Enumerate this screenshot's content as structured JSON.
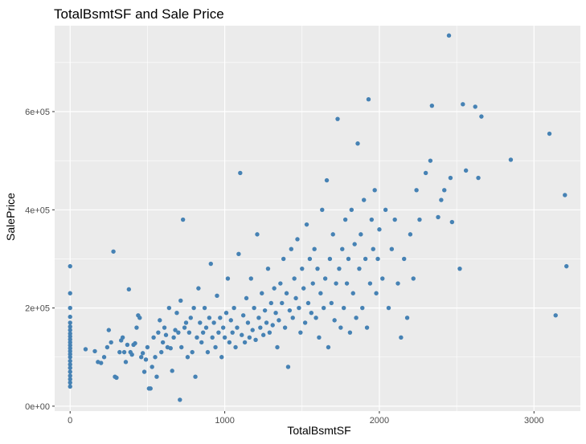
{
  "chart_data": {
    "type": "scatter",
    "title": "TotalBsmtSF and Sale Price",
    "xlabel": "TotalBsmtSF",
    "ylabel": "SalePrice",
    "xlim": [
      -100,
      3300
    ],
    "ylim": [
      -10000,
      775000
    ],
    "x_ticks": [
      {
        "value": 0,
        "label": "0"
      },
      {
        "value": 1000,
        "label": "1000"
      },
      {
        "value": 2000,
        "label": "2000"
      },
      {
        "value": 3000,
        "label": "3000"
      }
    ],
    "y_ticks": [
      {
        "value": 0,
        "label": "0e+00"
      },
      {
        "value": 200000,
        "label": "2e+05"
      },
      {
        "value": 400000,
        "label": "4e+05"
      },
      {
        "value": 600000,
        "label": "6e+05"
      }
    ],
    "grid": true,
    "point_color": "#4682B4",
    "panel_color": "#EBEBEB",
    "grid_color": "#FFFFFF",
    "series": [
      {
        "points": [
          [
            0,
            40000
          ],
          [
            0,
            48000
          ],
          [
            0,
            55000
          ],
          [
            0,
            62000
          ],
          [
            0,
            70000
          ],
          [
            0,
            78000
          ],
          [
            0,
            85000
          ],
          [
            0,
            92000
          ],
          [
            0,
            100000
          ],
          [
            0,
            106000
          ],
          [
            0,
            112000
          ],
          [
            0,
            118000
          ],
          [
            0,
            124000
          ],
          [
            0,
            130000
          ],
          [
            0,
            136000
          ],
          [
            0,
            142000
          ],
          [
            0,
            148000
          ],
          [
            0,
            155000
          ],
          [
            0,
            162000
          ],
          [
            0,
            170000
          ],
          [
            0,
            182000
          ],
          [
            0,
            200000
          ],
          [
            0,
            230000
          ],
          [
            0,
            285000
          ],
          [
            100,
            116000
          ],
          [
            160,
            112000
          ],
          [
            180,
            90000
          ],
          [
            200,
            88000
          ],
          [
            220,
            100000
          ],
          [
            240,
            120000
          ],
          [
            250,
            155000
          ],
          [
            265,
            130000
          ],
          [
            280,
            315000
          ],
          [
            290,
            60000
          ],
          [
            300,
            58000
          ],
          [
            320,
            110000
          ],
          [
            330,
            134000
          ],
          [
            340,
            140000
          ],
          [
            350,
            110000
          ],
          [
            360,
            90000
          ],
          [
            370,
            125000
          ],
          [
            380,
            238000
          ],
          [
            390,
            110000
          ],
          [
            400,
            105000
          ],
          [
            410,
            125000
          ],
          [
            420,
            128000
          ],
          [
            430,
            160000
          ],
          [
            440,
            185000
          ],
          [
            450,
            180000
          ],
          [
            460,
            100000
          ],
          [
            470,
            108000
          ],
          [
            480,
            70000
          ],
          [
            490,
            95000
          ],
          [
            500,
            120000
          ],
          [
            510,
            36000
          ],
          [
            520,
            36000
          ],
          [
            530,
            80000
          ],
          [
            540,
            140000
          ],
          [
            550,
            100000
          ],
          [
            560,
            60000
          ],
          [
            570,
            150000
          ],
          [
            580,
            175000
          ],
          [
            590,
            110000
          ],
          [
            600,
            130000
          ],
          [
            610,
            160000
          ],
          [
            620,
            145000
          ],
          [
            630,
            120000
          ],
          [
            640,
            200000
          ],
          [
            650,
            118000
          ],
          [
            660,
            72000
          ],
          [
            670,
            140000
          ],
          [
            680,
            155000
          ],
          [
            690,
            190000
          ],
          [
            700,
            150000
          ],
          [
            710,
            13000
          ],
          [
            715,
            215000
          ],
          [
            720,
            120000
          ],
          [
            730,
            380000
          ],
          [
            740,
            160000
          ],
          [
            750,
            170000
          ],
          [
            760,
            100000
          ],
          [
            770,
            150000
          ],
          [
            780,
            180000
          ],
          [
            790,
            110000
          ],
          [
            800,
            200000
          ],
          [
            810,
            60000
          ],
          [
            820,
            140000
          ],
          [
            830,
            240000
          ],
          [
            840,
            170000
          ],
          [
            850,
            130000
          ],
          [
            860,
            150000
          ],
          [
            870,
            200000
          ],
          [
            880,
            160000
          ],
          [
            890,
            110000
          ],
          [
            900,
            180000
          ],
          [
            910,
            290000
          ],
          [
            920,
            140000
          ],
          [
            930,
            170000
          ],
          [
            940,
            120000
          ],
          [
            950,
            225000
          ],
          [
            960,
            150000
          ],
          [
            970,
            180000
          ],
          [
            980,
            100000
          ],
          [
            990,
            160000
          ],
          [
            1000,
            140000
          ],
          [
            1010,
            190000
          ],
          [
            1020,
            260000
          ],
          [
            1030,
            130000
          ],
          [
            1040,
            175000
          ],
          [
            1050,
            150000
          ],
          [
            1060,
            200000
          ],
          [
            1070,
            120000
          ],
          [
            1080,
            160000
          ],
          [
            1090,
            310000
          ],
          [
            1100,
            475000
          ],
          [
            1110,
            145000
          ],
          [
            1120,
            185000
          ],
          [
            1130,
            130000
          ],
          [
            1140,
            220000
          ],
          [
            1150,
            170000
          ],
          [
            1160,
            140000
          ],
          [
            1170,
            260000
          ],
          [
            1180,
            155000
          ],
          [
            1190,
            200000
          ],
          [
            1200,
            135000
          ],
          [
            1210,
            350000
          ],
          [
            1220,
            180000
          ],
          [
            1230,
            160000
          ],
          [
            1240,
            230000
          ],
          [
            1250,
            145000
          ],
          [
            1260,
            195000
          ],
          [
            1270,
            170000
          ],
          [
            1280,
            280000
          ],
          [
            1290,
            150000
          ],
          [
            1300,
            210000
          ],
          [
            1310,
            165000
          ],
          [
            1320,
            240000
          ],
          [
            1330,
            190000
          ],
          [
            1340,
            120000
          ],
          [
            1350,
            175000
          ],
          [
            1360,
            250000
          ],
          [
            1370,
            210000
          ],
          [
            1380,
            300000
          ],
          [
            1390,
            160000
          ],
          [
            1400,
            230000
          ],
          [
            1410,
            80000
          ],
          [
            1420,
            195000
          ],
          [
            1430,
            320000
          ],
          [
            1440,
            180000
          ],
          [
            1450,
            260000
          ],
          [
            1460,
            220000
          ],
          [
            1470,
            340000
          ],
          [
            1480,
            200000
          ],
          [
            1490,
            150000
          ],
          [
            1500,
            280000
          ],
          [
            1510,
            240000
          ],
          [
            1520,
            170000
          ],
          [
            1530,
            370000
          ],
          [
            1540,
            210000
          ],
          [
            1550,
            300000
          ],
          [
            1560,
            190000
          ],
          [
            1570,
            250000
          ],
          [
            1580,
            320000
          ],
          [
            1590,
            180000
          ],
          [
            1600,
            280000
          ],
          [
            1610,
            140000
          ],
          [
            1620,
            230000
          ],
          [
            1630,
            400000
          ],
          [
            1640,
            200000
          ],
          [
            1650,
            260000
          ],
          [
            1660,
            460000
          ],
          [
            1670,
            120000
          ],
          [
            1680,
            300000
          ],
          [
            1690,
            210000
          ],
          [
            1700,
            350000
          ],
          [
            1710,
            175000
          ],
          [
            1720,
            250000
          ],
          [
            1730,
            585000
          ],
          [
            1740,
            280000
          ],
          [
            1750,
            160000
          ],
          [
            1760,
            320000
          ],
          [
            1770,
            200000
          ],
          [
            1780,
            380000
          ],
          [
            1790,
            250000
          ],
          [
            1800,
            300000
          ],
          [
            1810,
            150000
          ],
          [
            1820,
            400000
          ],
          [
            1830,
            230000
          ],
          [
            1840,
            330000
          ],
          [
            1850,
            180000
          ],
          [
            1860,
            535000
          ],
          [
            1870,
            280000
          ],
          [
            1880,
            350000
          ],
          [
            1890,
            200000
          ],
          [
            1900,
            420000
          ],
          [
            1910,
            300000
          ],
          [
            1920,
            160000
          ],
          [
            1930,
            625000
          ],
          [
            1940,
            250000
          ],
          [
            1950,
            380000
          ],
          [
            1960,
            320000
          ],
          [
            1970,
            440000
          ],
          [
            1980,
            230000
          ],
          [
            1990,
            300000
          ],
          [
            2000,
            360000
          ],
          [
            2020,
            260000
          ],
          [
            2040,
            400000
          ],
          [
            2060,
            200000
          ],
          [
            2080,
            320000
          ],
          [
            2100,
            380000
          ],
          [
            2120,
            250000
          ],
          [
            2140,
            140000
          ],
          [
            2160,
            300000
          ],
          [
            2180,
            180000
          ],
          [
            2200,
            350000
          ],
          [
            2220,
            260000
          ],
          [
            2240,
            440000
          ],
          [
            2260,
            380000
          ],
          [
            2300,
            475000
          ],
          [
            2330,
            500000
          ],
          [
            2340,
            612000
          ],
          [
            2380,
            385000
          ],
          [
            2400,
            420000
          ],
          [
            2420,
            440000
          ],
          [
            2450,
            755000
          ],
          [
            2460,
            465000
          ],
          [
            2470,
            375000
          ],
          [
            2520,
            280000
          ],
          [
            2540,
            615000
          ],
          [
            2560,
            480000
          ],
          [
            2620,
            610000
          ],
          [
            2640,
            465000
          ],
          [
            2660,
            590000
          ],
          [
            2850,
            502000
          ],
          [
            3100,
            555000
          ],
          [
            3140,
            185000
          ],
          [
            3200,
            430000
          ],
          [
            3210,
            285000
          ]
        ]
      }
    ]
  }
}
